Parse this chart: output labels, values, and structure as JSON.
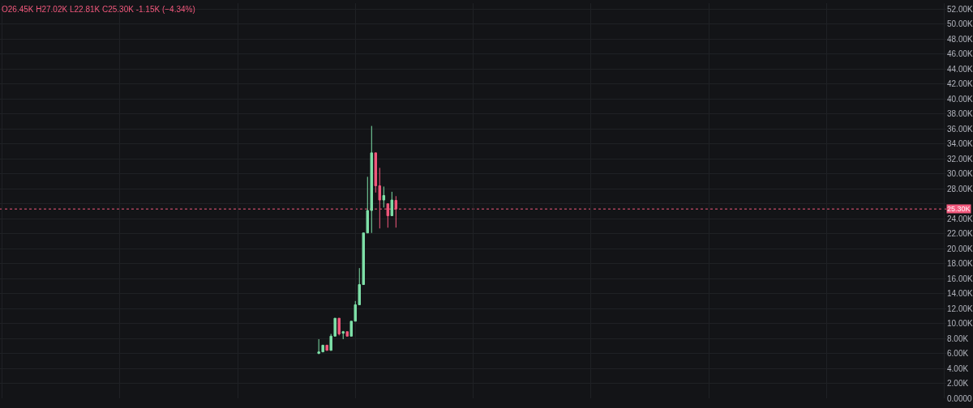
{
  "chart_data": {
    "type": "candlestick",
    "categories": [
      null,
      null,
      null,
      null,
      null,
      null,
      null,
      null,
      null,
      null,
      null,
      null,
      null,
      null,
      null,
      null,
      null,
      null,
      null,
      null,
      null,
      null,
      null,
      null,
      null,
      null,
      null,
      null,
      null,
      null,
      null,
      null,
      null,
      null,
      null,
      null,
      null,
      null,
      null,
      null,
      null,
      null,
      null,
      null,
      null,
      null,
      null,
      null,
      null,
      null,
      null,
      null,
      null,
      null,
      null,
      null,
      null,
      null,
      null,
      null,
      null,
      null,
      null,
      null,
      null,
      null,
      null,
      null,
      null,
      null,
      null,
      null,
      null,
      null,
      null,
      null,
      null,
      null,
      null,
      null,
      null,
      null,
      null,
      null,
      null,
      null,
      null,
      null,
      null,
      null,
      null,
      null,
      null,
      null,
      null,
      null,
      null,
      null,
      null,
      null,
      null,
      null,
      null,
      null,
      null,
      null,
      null,
      null,
      null,
      null,
      null,
      null,
      null,
      null,
      null,
      null,
      null,
      null,
      null,
      null,
      null,
      null,
      null,
      null,
      null,
      null,
      null,
      null,
      null,
      null,
      null,
      null,
      null,
      null,
      null,
      null,
      null,
      null,
      null,
      null,
      null,
      null,
      null,
      null,
      null,
      null,
      null,
      null,
      null,
      null,
      null,
      null,
      null,
      null,
      null,
      null,
      null,
      null,
      null,
      null,
      null,
      null,
      null,
      null,
      null,
      null,
      null,
      null,
      null,
      null,
      null,
      null,
      null,
      null,
      null,
      null,
      null,
      null,
      null,
      null,
      null,
      null,
      null,
      null,
      null,
      null,
      null,
      null,
      null,
      null,
      null,
      null,
      null,
      null,
      null,
      null,
      null,
      null,
      null,
      null,
      null,
      null,
      null,
      null,
      null,
      null,
      null,
      null,
      null,
      null,
      null,
      null,
      null,
      null,
      null,
      null,
      null,
      null,
      null,
      null,
      null,
      null,
      null,
      null,
      null,
      null,
      null,
      null,
      null,
      null,
      null,
      null,
      null
    ],
    "ohlc": [
      null,
      null,
      null,
      null,
      null,
      null,
      null,
      null,
      null,
      null,
      null,
      null,
      null,
      null,
      null,
      null,
      null,
      null,
      null,
      null,
      null,
      null,
      null,
      null,
      null,
      null,
      null,
      null,
      null,
      null,
      null,
      null,
      null,
      null,
      null,
      null,
      null,
      null,
      null,
      null,
      null,
      null,
      null,
      null,
      null,
      null,
      null,
      null,
      null,
      null,
      null,
      null,
      null,
      null,
      null,
      null,
      null,
      null,
      null,
      null,
      null,
      null,
      null,
      null,
      null,
      null,
      null,
      null,
      null,
      null,
      null,
      null,
      null,
      null,
      null,
      null,
      null,
      null,
      [
        6.0,
        7.9,
        5.9,
        6.2
      ],
      [
        6.2,
        7.1,
        6.2,
        7.1
      ],
      [
        7.1,
        7.1,
        6.4,
        6.4
      ],
      [
        6.4,
        8.6,
        6.4,
        8.3
      ],
      [
        8.3,
        10.7,
        8.3,
        10.7
      ],
      [
        10.7,
        10.7,
        8.4,
        8.6
      ],
      [
        8.7,
        9.0,
        7.9,
        8.9
      ],
      [
        8.9,
        8.9,
        8.3,
        8.3
      ],
      [
        8.3,
        10.3,
        8.3,
        10.3
      ],
      [
        10.3,
        13.0,
        10.3,
        12.5
      ],
      [
        12.5,
        17.4,
        12.5,
        15.2
      ],
      [
        15.2,
        22.1,
        15.2,
        22.1
      ],
      [
        22.1,
        29.6,
        22.1,
        25.1
      ],
      [
        25.1,
        36.4,
        22.1,
        32.8
      ],
      [
        32.8,
        32.8,
        27.5,
        28.4
      ],
      [
        28.4,
        30.8,
        22.7,
        26.5
      ],
      [
        26.5,
        28.3,
        25.5,
        27.1
      ],
      [
        26.0,
        26.0,
        22.8,
        24.4
      ],
      [
        24.4,
        27.6,
        24.4,
        26.5
      ],
      [
        26.45,
        27.02,
        22.81,
        25.3
      ],
      null,
      null,
      null,
      null,
      null,
      null,
      null,
      null,
      null,
      null,
      null,
      null,
      null,
      null,
      null,
      null,
      null,
      null,
      null,
      null,
      null,
      null,
      null,
      null,
      null,
      null,
      null,
      null,
      null,
      null,
      null,
      null,
      null,
      null,
      null,
      null,
      null,
      null,
      null,
      null,
      null,
      null,
      null,
      null,
      null,
      null,
      null,
      null,
      null,
      null,
      null,
      null,
      null,
      null,
      null,
      null,
      null,
      null,
      null,
      null,
      null,
      null,
      null,
      null,
      null,
      null,
      null,
      null,
      null,
      null,
      null,
      null,
      null,
      null,
      null,
      null,
      null,
      null,
      null,
      null,
      null,
      null,
      null,
      null,
      null,
      null,
      null,
      null,
      null,
      null,
      null,
      null,
      null,
      null,
      null,
      null,
      null,
      null,
      null,
      null,
      null,
      null,
      null,
      null,
      null,
      null,
      null,
      null,
      null,
      null,
      null,
      null,
      null,
      null,
      null,
      null,
      null,
      null,
      null,
      null,
      null,
      null,
      null,
      null,
      null,
      null,
      null,
      null,
      null,
      null,
      null,
      null,
      null,
      null,
      null
    ],
    "colors": [
      null,
      null,
      null,
      null,
      null,
      null,
      null,
      null,
      null,
      null,
      null,
      null,
      null,
      null,
      null,
      null,
      null,
      null,
      null,
      null,
      null,
      null,
      null,
      null,
      null,
      null,
      null,
      null,
      null,
      null,
      null,
      null,
      null,
      null,
      null,
      null,
      null,
      null,
      null,
      null,
      null,
      null,
      null,
      null,
      null,
      null,
      null,
      null,
      null,
      null,
      null,
      null,
      null,
      null,
      null,
      null,
      null,
      null,
      null,
      null,
      null,
      null,
      null,
      null,
      null,
      null,
      null,
      null,
      null,
      null,
      null,
      null,
      null,
      null,
      null,
      null,
      null,
      null,
      "#7ee0a8",
      "#7ee0a8",
      "#f2587c",
      "#7ee0a8",
      "#7ee0a8",
      "#f2587c",
      "#7ee0a8",
      "#f2587c",
      "#7ee0a8",
      "#7ee0a8",
      "#7ee0a8",
      "#7ee0a8",
      "#7ee0a8",
      "#7ee0a8",
      "#f2587c",
      "#f2587c",
      "#7ee0a8",
      "#f2587c",
      "#7ee0a8",
      "#f2587c",
      null,
      null,
      null,
      null,
      null,
      null,
      null,
      null,
      null,
      null,
      null,
      null,
      null,
      null,
      null,
      null,
      null,
      null,
      null,
      null,
      null,
      null,
      null,
      null,
      null,
      null,
      null,
      null,
      null,
      null,
      null,
      null,
      null,
      null,
      null,
      null,
      null,
      null,
      null,
      null,
      null,
      null,
      null,
      null,
      null,
      null,
      null,
      null,
      null,
      null,
      null,
      null,
      null,
      null,
      null,
      null,
      null,
      null,
      null,
      null,
      null,
      null,
      null,
      null,
      null,
      null,
      null,
      null,
      null,
      null,
      null,
      null,
      null,
      null,
      null,
      null,
      null,
      null,
      null,
      null,
      null,
      null,
      null,
      null,
      null,
      null,
      null,
      null,
      null,
      null,
      null,
      null,
      null,
      null,
      null,
      null,
      null,
      null,
      null,
      null,
      null,
      null,
      null,
      null,
      null,
      null,
      null,
      null,
      null,
      null,
      null,
      null,
      null,
      null,
      null,
      null,
      null,
      null,
      null,
      null,
      null,
      null,
      null,
      null,
      null,
      null,
      null,
      null,
      null,
      null,
      null,
      null,
      null,
      null,
      null
    ],
    "ylim": [
      0,
      52.8
    ],
    "yticks": [
      {
        "value": 0,
        "label": "0.0000"
      },
      {
        "value": 2,
        "label": "2.00K"
      },
      {
        "value": 4,
        "label": "4.00K"
      },
      {
        "value": 6,
        "label": "6.00K"
      },
      {
        "value": 8,
        "label": "8.00K"
      },
      {
        "value": 10,
        "label": "10.00K"
      },
      {
        "value": 12,
        "label": "12.00K"
      },
      {
        "value": 14,
        "label": "14.00K"
      },
      {
        "value": 16,
        "label": "16.00K"
      },
      {
        "value": 18,
        "label": "18.00K"
      },
      {
        "value": 20,
        "label": "20.00K"
      },
      {
        "value": 22,
        "label": "22.00K"
      },
      {
        "value": 24,
        "label": "24.00K"
      },
      {
        "value": 26,
        "label": null
      },
      {
        "value": 28,
        "label": "28.00K"
      },
      {
        "value": 30,
        "label": "30.00K"
      },
      {
        "value": 32,
        "label": "32.00K"
      },
      {
        "value": 34,
        "label": "34.00K"
      },
      {
        "value": 36,
        "label": "36.00K"
      },
      {
        "value": 38,
        "label": "38.00K"
      },
      {
        "value": 40,
        "label": "40.00K"
      },
      {
        "value": 42,
        "label": "42.00K"
      },
      {
        "value": 44,
        "label": "44.00K"
      },
      {
        "value": 46,
        "label": "46.00K"
      },
      {
        "value": 48,
        "label": "48.00K"
      },
      {
        "value": 50,
        "label": "50.00K"
      },
      {
        "value": 52,
        "label": "52.00K"
      }
    ],
    "ref_lines": [
      {
        "axis": "y",
        "value": 25.3,
        "label": "25.30K",
        "color": "#f2587c",
        "line_style": "dotted"
      }
    ],
    "annotations": [
      "O26.45K H27.02K L22.81K C25.30K -1.15K (−4.34%)"
    ],
    "grid": true,
    "tick_labels": "y"
  }
}
